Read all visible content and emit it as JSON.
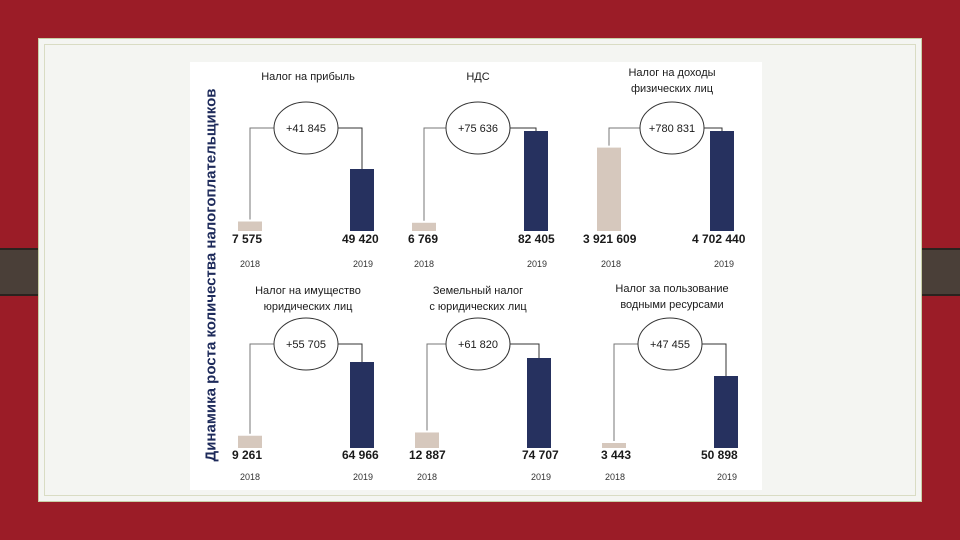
{
  "colors": {
    "background": "#9b1c27",
    "bar_2018": "#d6c8bd",
    "bar_2019": "#26315f",
    "text": "#1a1a1a",
    "title": "#1d2a5a"
  },
  "chart_data": {
    "title": "Динамика роста количества налогоплательщиков",
    "charts": [
      {
        "type": "bar",
        "title": "Налог на прибыль",
        "categories": [
          "2018",
          "2019"
        ],
        "values": [
          7575,
          49420
        ],
        "value_labels": [
          "7 575",
          "49 420"
        ],
        "change_label": "+41 845"
      },
      {
        "type": "bar",
        "title": "НДС",
        "categories": [
          "2018",
          "2019"
        ],
        "values": [
          6769,
          82405
        ],
        "value_labels": [
          "6 769",
          "82 405"
        ],
        "change_label": "+75 636"
      },
      {
        "type": "bar",
        "title": "Налог на доходы физических лиц",
        "categories": [
          "2018",
          "2019"
        ],
        "values": [
          3921609,
          4702440
        ],
        "value_labels": [
          "3 921 609",
          "4 702 440"
        ],
        "change_label": "+780 831"
      },
      {
        "type": "bar",
        "title": "Налог на имущество юридических лиц",
        "categories": [
          "2018",
          "2019"
        ],
        "values": [
          9261,
          64966
        ],
        "value_labels": [
          "9 261",
          "64 966"
        ],
        "change_label": "+55 705"
      },
      {
        "type": "bar",
        "title": "Земельный налог с юридических лиц",
        "categories": [
          "2018",
          "2019"
        ],
        "values": [
          12887,
          74707
        ],
        "value_labels": [
          "12 887",
          "74 707"
        ],
        "change_label": "+61 820"
      },
      {
        "type": "bar",
        "title": "Налог за пользование водными ресурсами",
        "categories": [
          "2018",
          "2019"
        ],
        "values": [
          3443,
          50898
        ],
        "value_labels": [
          "3 443",
          "50 898"
        ],
        "change_label": "+47 455"
      }
    ]
  }
}
